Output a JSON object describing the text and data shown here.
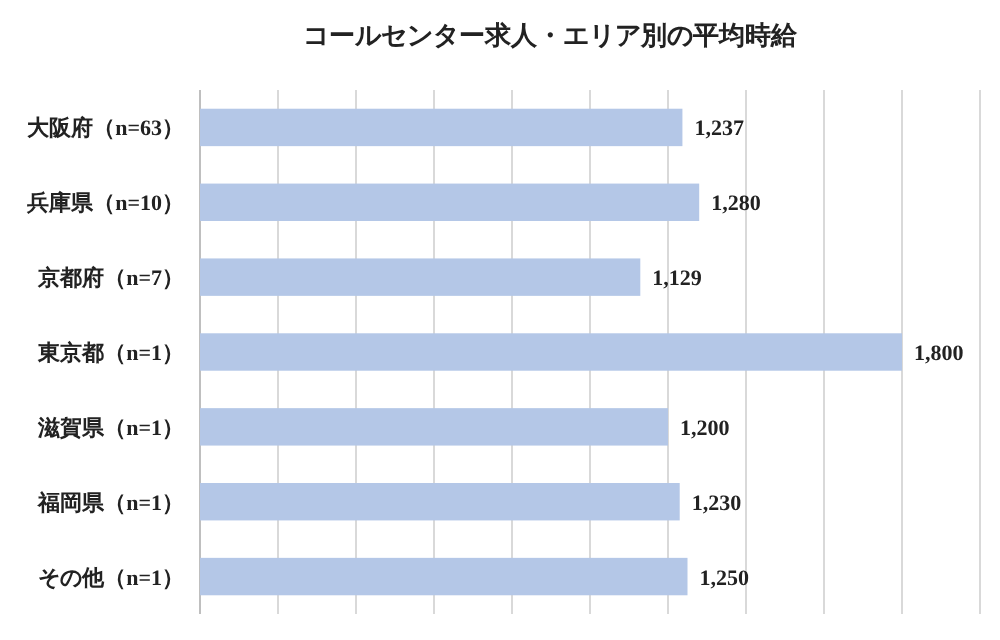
{
  "chart_data": {
    "type": "bar",
    "orientation": "horizontal",
    "title": "コールセンター求人・エリア別の平均時給",
    "categories": [
      "大阪府（n=63）",
      "兵庫県（n=10）",
      "京都府（n=7）",
      "東京都（n=1）",
      "滋賀県（n=1）",
      "福岡県（n=1）",
      "その他（n=1）"
    ],
    "values": [
      1237,
      1280,
      1129,
      1800,
      1200,
      1230,
      1250
    ],
    "value_labels": [
      "1,237",
      "1,280",
      "1,129",
      "1,800",
      "1,200",
      "1,230",
      "1,250"
    ],
    "color": "#b4c7e7",
    "xlim": [
      0,
      2000
    ],
    "xticks": [
      {
        "value": 0,
        "label": null
      },
      {
        "value": 200,
        "label": null
      },
      {
        "value": 400,
        "label": null
      },
      {
        "value": 600,
        "label": null
      },
      {
        "value": 800,
        "label": null
      },
      {
        "value": 1000,
        "label": null
      },
      {
        "value": 1200,
        "label": null
      },
      {
        "value": 1400,
        "label": null
      },
      {
        "value": 1600,
        "label": null
      },
      {
        "value": 1800,
        "label": null
      },
      {
        "value": 2000,
        "label": null
      }
    ],
    "grid": "x",
    "tick_labels": "y"
  }
}
